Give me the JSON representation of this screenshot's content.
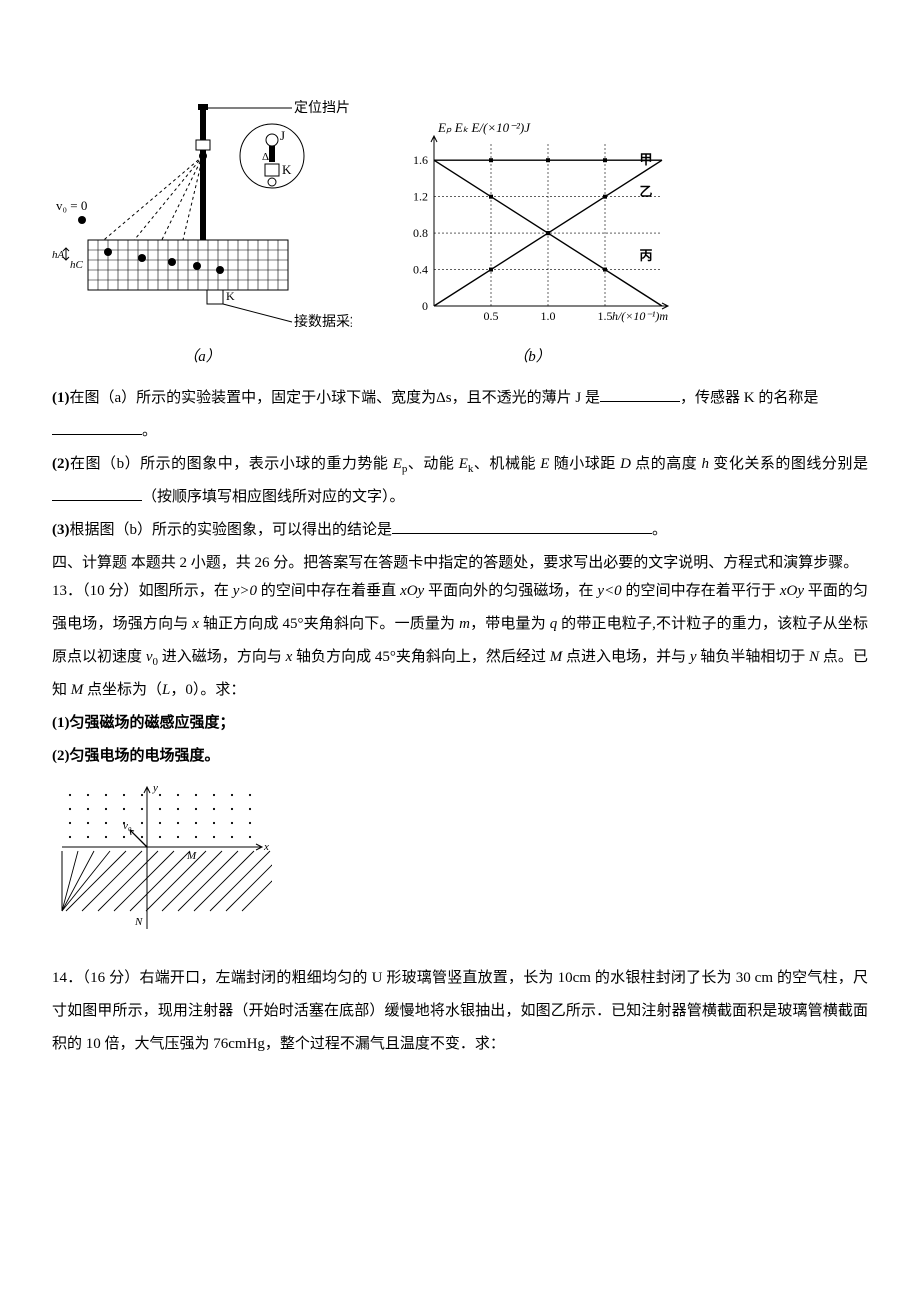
{
  "figA": {
    "label_top": "定位挡片",
    "label_j": "J",
    "label_ds": "Δs",
    "label_k": "K",
    "label_v0": "v₀ = 0",
    "label_ha": "hA",
    "label_hc": "hC",
    "label_bottom": "接数据采集",
    "caption": "（a）",
    "bgcolor": "#ffffff",
    "linecolor": "#000000"
  },
  "chart": {
    "type": "line",
    "title": "Eₚ  Eₖ  E/(×10⁻²)J",
    "xlabel": "h/(×10⁻¹)m",
    "xlim": [
      0,
      2.0
    ],
    "ylim": [
      0,
      1.8
    ],
    "xticks": [
      0,
      0.5,
      1.0,
      1.5
    ],
    "yticks": [
      0,
      0.4,
      0.8,
      1.2,
      1.6
    ],
    "series": [
      {
        "name": "甲",
        "points": [
          [
            0,
            1.6
          ],
          [
            2.0,
            1.6
          ]
        ],
        "label_at": [
          1.75,
          1.6
        ],
        "color": "#000000"
      },
      {
        "name": "乙",
        "points": [
          [
            0,
            0
          ],
          [
            2.0,
            1.6
          ]
        ],
        "label_at": [
          1.75,
          1.25
        ],
        "color": "#000000"
      },
      {
        "name": "丙",
        "points": [
          [
            0,
            1.6
          ],
          [
            2.0,
            0
          ]
        ],
        "label_at": [
          1.75,
          0.55
        ],
        "color": "#000000"
      }
    ],
    "grid_color": "#000000",
    "grid_dash": "2 2",
    "axis_color": "#000000",
    "background_color": "#ffffff",
    "tick_fontsize": 12,
    "title_fontsize": 13,
    "caption": "（b）"
  },
  "q1": {
    "prefix": "(1)",
    "t1": "在图（a）所示的实验装置中，固定于小球下端、宽度为Δs，且不透光的薄片 J 是",
    "t2": "，传感器 K 的名称是",
    "t3": "。"
  },
  "q2": {
    "prefix": "(2)",
    "t1": "在图（b）所示的图象中，表示小球的重力势能 ",
    "ep": "E",
    "eps": "p",
    "t2": "、动能 ",
    "ek": "E",
    "eks": "k",
    "t3": "、机械能 ",
    "em": "E",
    "t4": " 随小球距 ",
    "dpt": "D",
    "t5": " 点的高度 ",
    "hv": "h",
    "t6": " 变化关系的图线分别是",
    "t7": "（按顺序填写相应图线所对应的文字）。"
  },
  "q3": {
    "prefix": "(3)",
    "t1": "根据图（b）所示的实验图象，可以得出的结论是",
    "t2": "。"
  },
  "section4": {
    "head": "四、计算题 本题共 2 小题，共 26 分。把答案写在答题卡中指定的答题处，要求写出必要的文字说明、方程式和演算步骤。"
  },
  "q13": {
    "head": "13．（10 分）如图所示，在 ",
    "y0a": "y>0",
    "t1": " 的空间中存在着垂直 ",
    "xoy1": "xOy",
    "t2": " 平面向外的匀强磁场，在 ",
    "y0b": "y<0",
    "t3": " 的空间中存在着平行于 ",
    "xoy2": "xOy",
    "t4": " 平面的匀强电场，场强方向与 ",
    "xax": "x",
    "t5": " 轴正方向成 45°夹角斜向下。一质量为 ",
    "mv": "m",
    "t6": "，带电量为 ",
    "qv": "q",
    "t7": " 的带正电粒子,不计粒子的重力，该粒子从坐标原点以初速度 ",
    "v0": "v",
    "v0s": "0",
    "t8": " 进入磁场，方向与 ",
    "xax2": "x",
    "t9": " 轴负方向成 45°夹角斜向上，然后经过 ",
    "mpt": "M",
    "t10": " 点进入电场，并与 ",
    "yax": "y",
    "t11": " 轴负半轴相切于 ",
    "npt": "N",
    "t12": " 点。已知 ",
    "mpt2": "M",
    "t13": " 点坐标为（",
    "lv": "L",
    "t14": "，0）。求：",
    "s1": "(1)匀强磁场的磁感应强度；",
    "s2": "(2)匀强电场的电场强度。",
    "fig": {
      "y_label": "y",
      "x_label": "x",
      "v0_label": "v₀",
      "m_label": "M",
      "n_label": "N",
      "dot_color": "#000000",
      "axis_color": "#000000",
      "hatch_color": "#000000",
      "angle_deg": 45
    }
  },
  "q14": {
    "t": "14．（16 分）右端开口，左端封闭的粗细均匀的 U 形玻璃管竖直放置，长为 10cm 的水银柱封闭了长为 30 cm 的空气柱，尺寸如图甲所示，现用注射器（开始时活塞在底部）缓慢地将水银抽出，如图乙所示．已知注射器管横截面积是玻璃管横截面积的 10 倍，大气压强为 76cmHg，整个过程不漏气且温度不变．求："
  }
}
